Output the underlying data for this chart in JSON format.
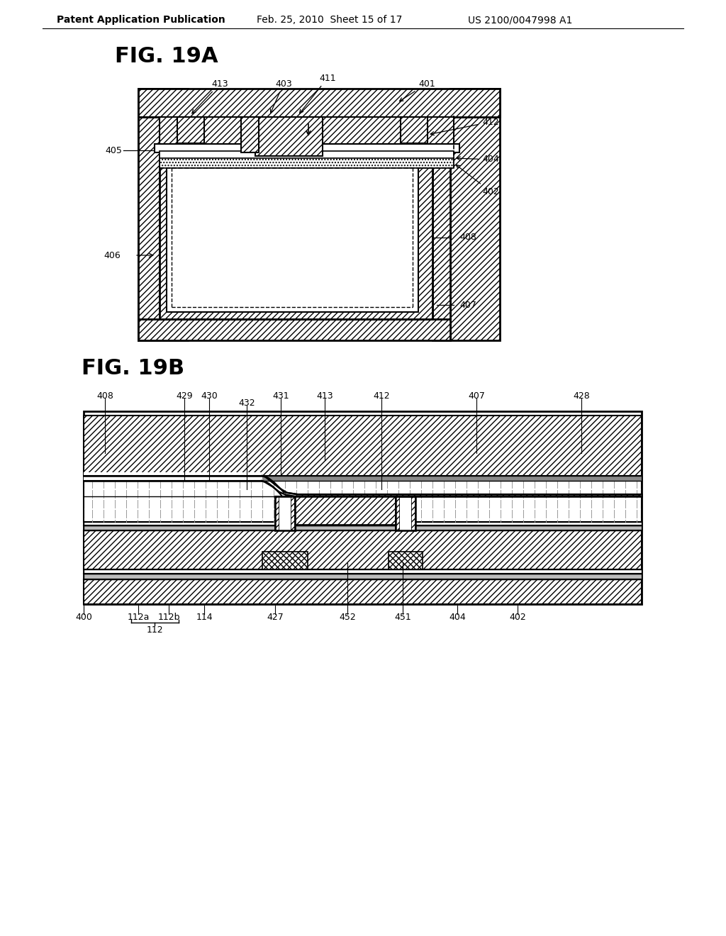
{
  "header_left": "Patent Application Publication",
  "header_mid": "Feb. 25, 2010  Sheet 15 of 17",
  "header_right": "US 2100/0047998 A1",
  "fig19a_label": "FIG. 19A",
  "fig19b_label": "FIG. 19B",
  "bg": "#ffffff"
}
